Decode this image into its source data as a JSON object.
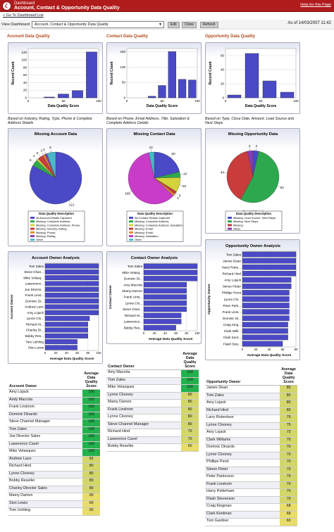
{
  "header": {
    "crumb": "Dashboard",
    "title": "Account, Contact & Opportunity Data Quality",
    "help_link": "Help for this Page"
  },
  "breadcrumb_link": "« Go To Dashboard List",
  "toolbar": {
    "view_label": "View Dashboard",
    "selected": "Account, Contact & Opportunity Data Quality",
    "edit": "Edit",
    "clone": "Clone",
    "refresh": "Refresh",
    "as_of": "As of 14/03/2007 11:42"
  },
  "columns": {
    "account": {
      "title": "Account Data Quality",
      "caption": "Based on Industry, Rating, Type, Phone & Complete Address Details"
    },
    "contact": {
      "title": "Contact Data Quality",
      "caption": "Based on Phone, Email Address, Title, Salutation & Complete Address Details"
    },
    "opportunity": {
      "title": "Opportunity Data Quality",
      "caption": "Based on Type, Close Date, Amount, Lead Source and Next Steps"
    }
  },
  "colors": {
    "bar": "#4a4ac6",
    "header": "#b01b1b",
    "hi": "#23b14d",
    "mid": "#d3d66a"
  },
  "chart_data": [
    {
      "id": "acct_bar",
      "type": "bar",
      "categories": [
        "0",
        "50",
        "60",
        "80",
        "100"
      ],
      "values": [
        0,
        2,
        10,
        19,
        121
      ],
      "xlabel": "Data Quality Score",
      "ylabel": "Record Count",
      "ylim": [
        0,
        130
      ],
      "yticks": [
        0,
        20,
        40,
        60,
        80,
        100,
        120
      ],
      "xticks": [
        "0",
        "50",
        "100"
      ]
    },
    {
      "id": "cont_bar",
      "type": "bar",
      "categories": [
        "0",
        "20",
        "40",
        "50",
        "60",
        "80",
        "100"
      ],
      "values": [
        0,
        0,
        5,
        40,
        150,
        60,
        58
      ],
      "xlabel": "Data Quality Score",
      "ylabel": "Record Count",
      "ylim": [
        0,
        160
      ],
      "yticks": [
        0,
        50,
        100,
        150
      ],
      "xticks": [
        "0",
        "50",
        "100"
      ]
    },
    {
      "id": "opp_bar",
      "type": "bar",
      "categories": [
        "40",
        "60",
        "80",
        "100"
      ],
      "values": [
        4,
        63,
        24,
        8
      ],
      "xlabel": "Data Quality Score",
      "ylabel": "Record Count",
      "ylim": [
        0,
        70
      ],
      "yticks": [
        0,
        20,
        40,
        60
      ],
      "xticks": [
        "0",
        "50",
        "100"
      ]
    },
    {
      "id": "acct_pie",
      "type": "pie",
      "title": "Missing Account Data",
      "xlabel": "Record Count",
      "legend_title": "Data Quality Description",
      "slices": [
        {
          "label": "All Account Details Captured",
          "value": 121,
          "color": "#4a4ac6"
        },
        {
          "label": "Missing: Complete Address",
          "value": 6,
          "color": "#2ea84e"
        },
        {
          "label": "Missing: Complete Address, Phone,",
          "value": 2,
          "color": "#d4d43a"
        },
        {
          "label": "Missing: Industry, Rating,",
          "value": 5,
          "color": "#c83c3c"
        },
        {
          "label": "Missing: Phone,",
          "value": 2,
          "color": "#e08a30"
        },
        {
          "label": "Missing: Rating,",
          "value": 2,
          "color": "#8a3cb0"
        },
        {
          "label": "Other",
          "value": 8,
          "color": "#4ab8c8"
        }
      ],
      "labels_shown": [
        "121",
        "2",
        "2",
        "5",
        "6",
        "8"
      ]
    },
    {
      "id": "cont_pie",
      "type": "pie",
      "title": "Missing Contact Data",
      "xlabel": "Record Count",
      "legend_title": "Data Quality Description",
      "slices": [
        {
          "label": "All Contact Details Captured",
          "value": 60,
          "color": "#4a4ac6"
        },
        {
          "label": "Missing: Complete Address",
          "value": 10,
          "color": "#2ea84e"
        },
        {
          "label": "Missing: Complete Address, Salutation",
          "value": 26,
          "color": "#d4d43a"
        },
        {
          "label": "Missing: Email",
          "value": 5,
          "color": "#c83c3c"
        },
        {
          "label": "Missing: Email,",
          "value": 4,
          "color": "#e08a30"
        },
        {
          "label": "Missing: Salutation",
          "value": 169,
          "color": "#c83cc8"
        },
        {
          "label": "Other",
          "value": 10,
          "color": "#4ab8c8"
        }
      ],
      "labels_shown": [
        "169",
        "60",
        "26",
        "10",
        "10",
        "5",
        "4"
      ]
    },
    {
      "id": "opp_pie",
      "type": "pie",
      "title": "Missing Opportunity Data",
      "xlabel": "Record Count",
      "legend_title": "Data Quality Description",
      "slices": [
        {
          "label": "Missing: Lead Source, Next Steps",
          "value": 4,
          "color": "#4a4ac6"
        },
        {
          "label": "Missing: Next Steps",
          "value": 62,
          "color": "#2ea84e"
        },
        {
          "label": "Missing:",
          "value": 44,
          "color": "#c83c3c"
        },
        {
          "label": "Other",
          "value": 4,
          "color": "#8a3cb0"
        }
      ],
      "labels_shown": [
        "44",
        "4",
        "4",
        "62"
      ]
    },
    {
      "id": "acct_hbar",
      "type": "bar",
      "title": "Account Owner Analysis",
      "xlabel": "Average Data Quality Score",
      "ylabel": "Account Owner",
      "categories": [
        "Tom Zales",
        "Steve Chan...",
        "Mike Velasq...",
        "Lawerence...",
        "Joe Directo...",
        "Frank Linst...",
        "Dominic Di...",
        "Andrew Lace",
        "Amy Lojack",
        "Lynne Clo...",
        "Richard Hi...",
        "Charley Di...",
        "Bobby Res...",
        "Tom Uehling",
        "Sion Lewis"
      ],
      "values": [
        100,
        100,
        100,
        100,
        100,
        100,
        100,
        100,
        100,
        83,
        80,
        80,
        80,
        60,
        60
      ],
      "xticks": [
        "0",
        "20",
        "40",
        "60",
        "80",
        "100"
      ]
    },
    {
      "id": "cont_hbar",
      "type": "bar",
      "title": "Contact Owner Analysis",
      "xlabel": "Average Data Quality Score",
      "ylabel": "Contact Owner",
      "categories": [
        "Tom Zales",
        "Mike Velasq...",
        "Dominic Di...",
        "Amy Macrola",
        "Mamy Damon",
        "Frank Linst...",
        "Lynne Clo...",
        "Steve Chan...",
        "Richard Hi...",
        "Lawerence...",
        "Bobby Res..."
      ],
      "values": [
        100,
        100,
        100,
        80,
        80,
        80,
        80,
        80,
        70,
        70,
        60
      ],
      "xticks": [
        "0",
        "20",
        "40",
        "60",
        "80",
        "100"
      ]
    },
    {
      "id": "opp_hbar",
      "type": "bar",
      "title": "Opportunity Owner Analysis",
      "xlabel": "Average Data Quality Score",
      "ylabel": "Opportunity Owner",
      "categories": [
        "Tom Zales",
        "James Dean",
        "Harry Robe...",
        "Richard Hind",
        "Amy Lojack",
        "Simon Fleter",
        "Phillipe Perot",
        "Lynne Clo...",
        "Peter Park...",
        "Frank Linst...",
        "Dominic Di...",
        "Craig King...",
        "Clark Willi...",
        "Clark Kent...",
        "Flash Stev..."
      ],
      "values": [
        80,
        80,
        80,
        80,
        73,
        73,
        70,
        70,
        70,
        70,
        70,
        68,
        68,
        68,
        60
      ],
      "xticks": [
        "0",
        "20",
        "40",
        "60",
        "80"
      ]
    }
  ],
  "tables": {
    "account": {
      "h_name": "Account Owner",
      "h_score": "Average Data Quality Score",
      "rows": [
        [
          "Amy Lojack",
          "100"
        ],
        [
          "Andy Macrola",
          "100"
        ],
        [
          "Frank Linstrom",
          "100"
        ],
        [
          "Dominic Dinardo",
          "100"
        ],
        [
          "Steve Channel Manager",
          "100"
        ],
        [
          "Tom Zales",
          "100"
        ],
        [
          "Joe Director Sales",
          "100"
        ],
        [
          "Lawerence Cavel",
          "100"
        ],
        [
          "Mike Velasquez",
          "100"
        ],
        [
          "Andrew Lace",
          "83"
        ],
        [
          "Richard Hind",
          "80"
        ],
        [
          "Lynne Clooney",
          "80"
        ],
        [
          "Bobby Reseller",
          "80"
        ],
        [
          "Charley Director Sales",
          "80"
        ],
        [
          "Mamy Damon",
          "60"
        ],
        [
          "Sion Lewis",
          "60"
        ],
        [
          "Tom Uehling",
          "60"
        ]
      ]
    },
    "contact": {
      "h_name": "Contact Owner",
      "h_score": "Average Data Quality Score",
      "rows": [
        [
          "Amy Macrola",
          "100"
        ],
        [
          "Tom Zales",
          "100"
        ],
        [
          "Mike Velasquez",
          "100"
        ],
        [
          "Lynne Clooney",
          "80"
        ],
        [
          "Mamy Damon",
          "80"
        ],
        [
          "Frank Linstrom",
          "80"
        ],
        [
          "Lynne Clooney",
          "80"
        ],
        [
          "Steve Channel Manager",
          "80"
        ],
        [
          "Richard Hind",
          "70"
        ],
        [
          "Lawerence Cavel",
          "70"
        ],
        [
          "Bobby Reseller",
          "60"
        ]
      ]
    },
    "opportunity": {
      "h_name": "Opportunity Owner",
      "h_score": "Average Data Quality Score",
      "rows": [
        [
          "James Dean",
          "80"
        ],
        [
          "Tom Zales",
          "80"
        ],
        [
          "Amy Lojack",
          "80"
        ],
        [
          "Richard Hind",
          "80"
        ],
        [
          "Larry Robertson",
          "75"
        ],
        [
          "Lynne Clooney",
          "75"
        ],
        [
          "Amy Lojack",
          "73"
        ],
        [
          "Clark Williams",
          "70"
        ],
        [
          "Dominic Dinardo",
          "70"
        ],
        [
          "Lynne Clooney",
          "70"
        ],
        [
          "Phillipe Perot",
          "70"
        ],
        [
          "Simon Fleter",
          "70"
        ],
        [
          "Peter Parkerson",
          "70"
        ],
        [
          "Frank Linstrom",
          "70"
        ],
        [
          "Harry Potterham",
          "70"
        ],
        [
          "Flash Stevenson",
          "70"
        ],
        [
          "Craig Kingman",
          "68"
        ],
        [
          "Clark Kentman",
          "68"
        ],
        [
          "Tom Gardner",
          "60"
        ]
      ]
    }
  }
}
